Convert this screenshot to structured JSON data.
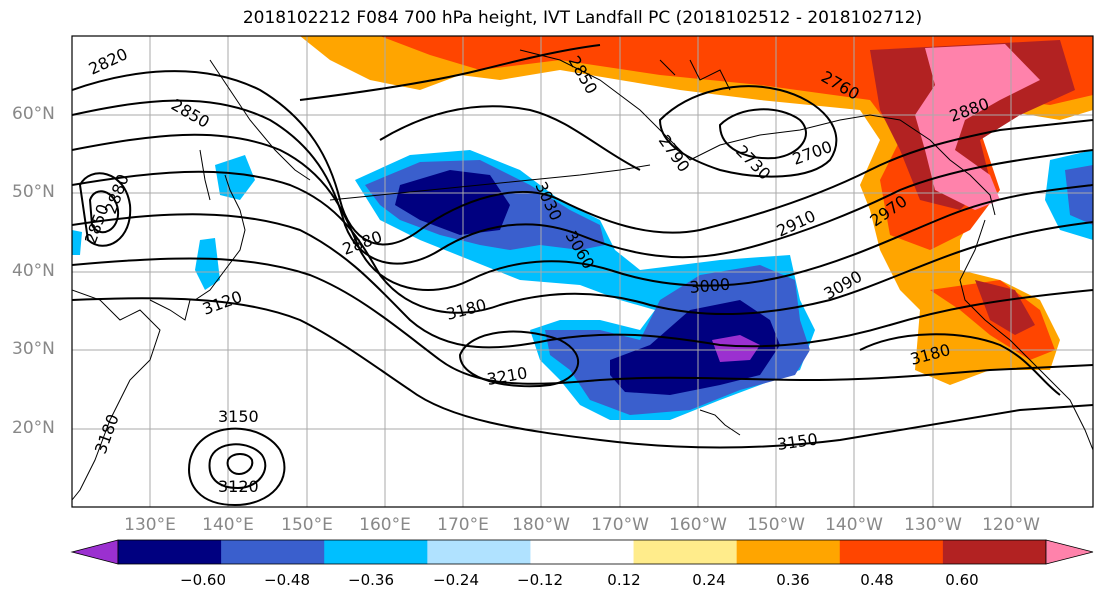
{
  "title": "2018102212 F084 700 hPa height, IVT Landfall PC (2018102512 - 2018102712)",
  "lat_labels": [
    "60°N",
    "50°N",
    "40°N",
    "30°N",
    "20°N"
  ],
  "lon_labels": [
    "130°E",
    "140°E",
    "150°E",
    "160°E",
    "170°E",
    "180°W",
    "170°W",
    "160°W",
    "150°W",
    "140°W",
    "130°W",
    "120°W"
  ],
  "contour_labels": [
    "2820",
    "2850",
    "2880",
    "2850",
    "2880",
    "3120",
    "3180",
    "3150",
    "3120",
    "3180",
    "3210",
    "3180",
    "3030",
    "3060",
    "3000",
    "3090",
    "2910",
    "2970",
    "2880",
    "2760",
    "2700",
    "2730",
    "2850",
    "2790",
    "3150",
    "3180"
  ],
  "colorbar": {
    "colors": [
      "#9b30d0",
      "#000080",
      "#3a5fcd",
      "#00bfff",
      "#b0e2ff",
      "#ffffff",
      "#ffec8b",
      "#ffa500",
      "#ff4500",
      "#b22222",
      "#ff82ab"
    ],
    "tick_labels": [
      "−0.60",
      "−0.48",
      "−0.36",
      "−0.24",
      "−0.12",
      "0.12",
      "0.24",
      "0.36",
      "0.48",
      "0.60"
    ]
  }
}
